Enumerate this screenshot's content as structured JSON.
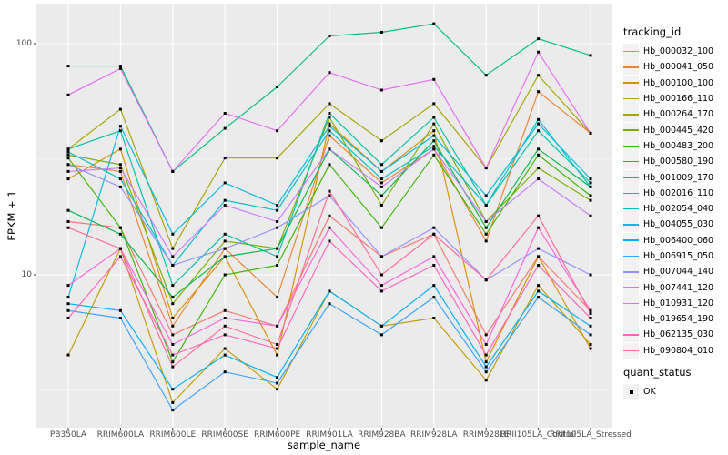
{
  "chart_data": {
    "type": "line",
    "title": "",
    "xlabel": "sample_name",
    "ylabel": "FPKM + 1",
    "y_scale": "log10",
    "y_ticks": [
      100,
      10
    ],
    "y_tick_labels": [
      "100",
      "10"
    ],
    "y_minor_breaks": [
      31.62,
      3.162
    ],
    "ylim": [
      2.2,
      149
    ],
    "grid": "major-and-minor",
    "legend_position": "right",
    "categories": [
      "PB350LA",
      "RRIM600LA",
      "RRIM600LE",
      "RRIM600SE",
      "RRIM600PE",
      "RRIM901LA",
      "RRIM928BA",
      "RRIM928LA",
      "RRIM928LE",
      "RRII105LA_Control",
      "RRII105LA_Stressed"
    ],
    "series": [
      {
        "name": "Hb_000032_100",
        "color": "#F8766D",
        "values": [
          17,
          16,
          5.5,
          7,
          6,
          18,
          12,
          15,
          5.5,
          12,
          7
        ]
      },
      {
        "name": "Hb_000041_050",
        "color": "#EA8331",
        "values": [
          30,
          28,
          6,
          13,
          8,
          40,
          25,
          35,
          14,
          62,
          41
        ]
      },
      {
        "name": "Hb_000100_100",
        "color": "#D89000",
        "values": [
          26,
          35,
          6.5,
          12,
          4.5,
          45,
          28,
          42,
          4.2,
          12,
          4.8
        ]
      },
      {
        "name": "Hb_000166_110",
        "color": "#C09B00",
        "values": [
          4.5,
          13,
          2.8,
          4.8,
          3.2,
          8.5,
          6,
          6.5,
          3.5,
          9,
          5
        ]
      },
      {
        "name": "Hb_000264_170",
        "color": "#A3A500",
        "values": [
          35,
          52,
          13,
          32,
          32,
          55,
          38,
          55,
          29,
          73,
          41
        ]
      },
      {
        "name": "Hb_000445_420",
        "color": "#7CAE00",
        "values": [
          33,
          30,
          7.5,
          14,
          13,
          48,
          20,
          45,
          17,
          29,
          21
        ]
      },
      {
        "name": "Hb_000483_200",
        "color": "#39B600",
        "values": [
          32,
          16,
          4.2,
          10,
          11,
          30,
          16,
          33,
          15,
          33,
          22
        ]
      },
      {
        "name": "Hb_000580_190",
        "color": "#00BB4E",
        "values": [
          19,
          15,
          8,
          12,
          13,
          35,
          22,
          38,
          16,
          35,
          24
        ]
      },
      {
        "name": "Hb_001009_170",
        "color": "#00BF7D",
        "values": [
          80,
          80,
          28,
          43,
          65,
          108,
          112,
          122,
          73,
          105,
          89
        ]
      },
      {
        "name": "Hb_002016_110",
        "color": "#00C1A3",
        "values": [
          35,
          42,
          9,
          15,
          12,
          50,
          30,
          48,
          20,
          42,
          25
        ]
      },
      {
        "name": "Hb_002054_040",
        "color": "#00BFC4",
        "values": [
          34,
          26,
          11,
          21,
          19,
          42,
          26,
          36,
          20,
          47,
          24
        ]
      },
      {
        "name": "Hb_004055_030",
        "color": "#00BAE0",
        "values": [
          8,
          44,
          15,
          25,
          20,
          44,
          28,
          40,
          22,
          45,
          26
        ]
      },
      {
        "name": "Hb_006400_060",
        "color": "#00B0F6",
        "values": [
          7.5,
          7,
          3.2,
          4.5,
          3.6,
          8.5,
          6,
          9,
          4,
          8.5,
          6
        ]
      },
      {
        "name": "Hb_006915_050",
        "color": "#35A2FF",
        "values": [
          7,
          6.5,
          2.6,
          3.8,
          3.4,
          7.5,
          5.5,
          8,
          3.8,
          8,
          5.5
        ]
      },
      {
        "name": "Hb_007044_140",
        "color": "#9590FF",
        "values": [
          30,
          24,
          11,
          13,
          16,
          22,
          12,
          16,
          9.5,
          13,
          10
        ]
      },
      {
        "name": "Hb_007441_120",
        "color": "#C77CFF",
        "values": [
          28,
          29,
          12,
          20,
          17,
          35,
          24,
          35,
          17,
          26,
          18
        ]
      },
      {
        "name": "Hb_010931_120",
        "color": "#E76BF3",
        "values": [
          60,
          78,
          28,
          50,
          42,
          75,
          63,
          70,
          29,
          92,
          41
        ]
      },
      {
        "name": "Hb_019654_190",
        "color": "#FA62DB",
        "values": [
          9,
          13,
          5,
          6.5,
          6,
          16,
          9,
          12,
          5,
          16,
          7
        ]
      },
      {
        "name": "Hb_062135_030",
        "color": "#FF62BC",
        "values": [
          6.5,
          12,
          4.5,
          5.5,
          4.8,
          14,
          8.5,
          11,
          4.5,
          11,
          6.5
        ]
      },
      {
        "name": "Hb_090804_010",
        "color": "#FF6A98",
        "values": [
          16,
          13,
          4,
          6,
          5,
          23,
          10,
          15,
          9.5,
          18,
          6.8
        ]
      }
    ],
    "legends": {
      "tracking": {
        "title": "tracking_id"
      },
      "quant": {
        "title": "quant_status",
        "items": [
          {
            "label": "OK",
            "shape": "filled-square",
            "color": "#000000"
          }
        ]
      }
    },
    "point": {
      "shape": "filled-square",
      "color": "#000000",
      "size": 3
    }
  },
  "style": {
    "panel_bg": "#EBEBEB",
    "grid_color": "#FFFFFF",
    "tick_mark_color": "#333333",
    "tick_label_color": "#4D4D4D",
    "title_color": "#000000",
    "legend_key_bg": "#F2F2F2",
    "outer_bg": "#FFFFFF"
  }
}
